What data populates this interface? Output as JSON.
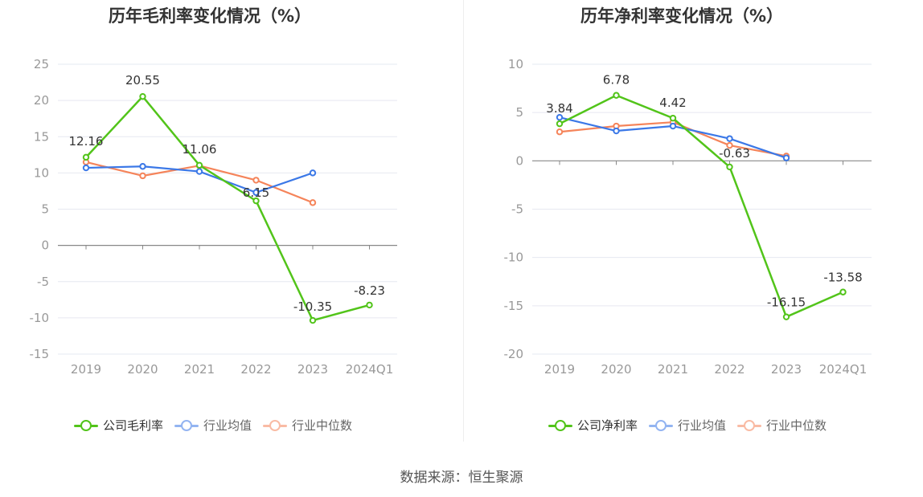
{
  "source": "数据来源：恒生聚源",
  "colors": {
    "company": "#52c41a",
    "industry_avg": "#3b78e7",
    "industry_median": "#f5845a",
    "grid": "#e6e8f0",
    "axis": "#999999"
  },
  "chart_data": [
    {
      "type": "line",
      "title": "历年毛利率变化情况（%）",
      "categories": [
        "2019",
        "2020",
        "2021",
        "2022",
        "2023",
        "2024Q1"
      ],
      "yticks": [
        25,
        20,
        15,
        10,
        5,
        0,
        -5,
        -10,
        -15
      ],
      "ylim": [
        -15,
        25
      ],
      "series": [
        {
          "name": "公司毛利率",
          "values": [
            12.16,
            20.55,
            11.06,
            6.15,
            -10.35,
            -8.23
          ],
          "labels": [
            "12.16",
            "20.55",
            "11.06",
            "6.15",
            "-10.35",
            "-8.23"
          ],
          "role": "company"
        },
        {
          "name": "行业均值",
          "values": [
            10.7,
            10.9,
            10.2,
            7.3,
            10.0,
            null
          ],
          "role": "industry_avg"
        },
        {
          "name": "行业中位数",
          "values": [
            11.5,
            9.6,
            11.0,
            9.0,
            5.9,
            null
          ],
          "role": "industry_median"
        }
      ],
      "legend": [
        "公司毛利率",
        "行业均值",
        "行业中位数"
      ],
      "legend_position": "bottom"
    },
    {
      "type": "line",
      "title": "历年净利率变化情况（%）",
      "categories": [
        "2019",
        "2020",
        "2021",
        "2022",
        "2023",
        "2024Q1"
      ],
      "yticks": [
        10,
        5,
        0,
        -5,
        -10,
        -15,
        -20
      ],
      "ylim": [
        -20,
        10
      ],
      "series": [
        {
          "name": "公司净利率",
          "values": [
            3.84,
            6.78,
            4.42,
            -0.63,
            -16.15,
            -13.58
          ],
          "labels": [
            "3.84",
            "6.78",
            "4.42",
            "-0.63",
            "-16.15",
            "-13.58"
          ],
          "role": "company"
        },
        {
          "name": "行业均值",
          "values": [
            4.5,
            3.1,
            3.6,
            2.3,
            0.3,
            null
          ],
          "role": "industry_avg"
        },
        {
          "name": "行业中位数",
          "values": [
            3.0,
            3.6,
            4.0,
            1.6,
            0.5,
            null
          ],
          "role": "industry_median"
        }
      ],
      "legend": [
        "公司净利率",
        "行业均值",
        "行业中位数"
      ],
      "legend_position": "bottom"
    }
  ]
}
